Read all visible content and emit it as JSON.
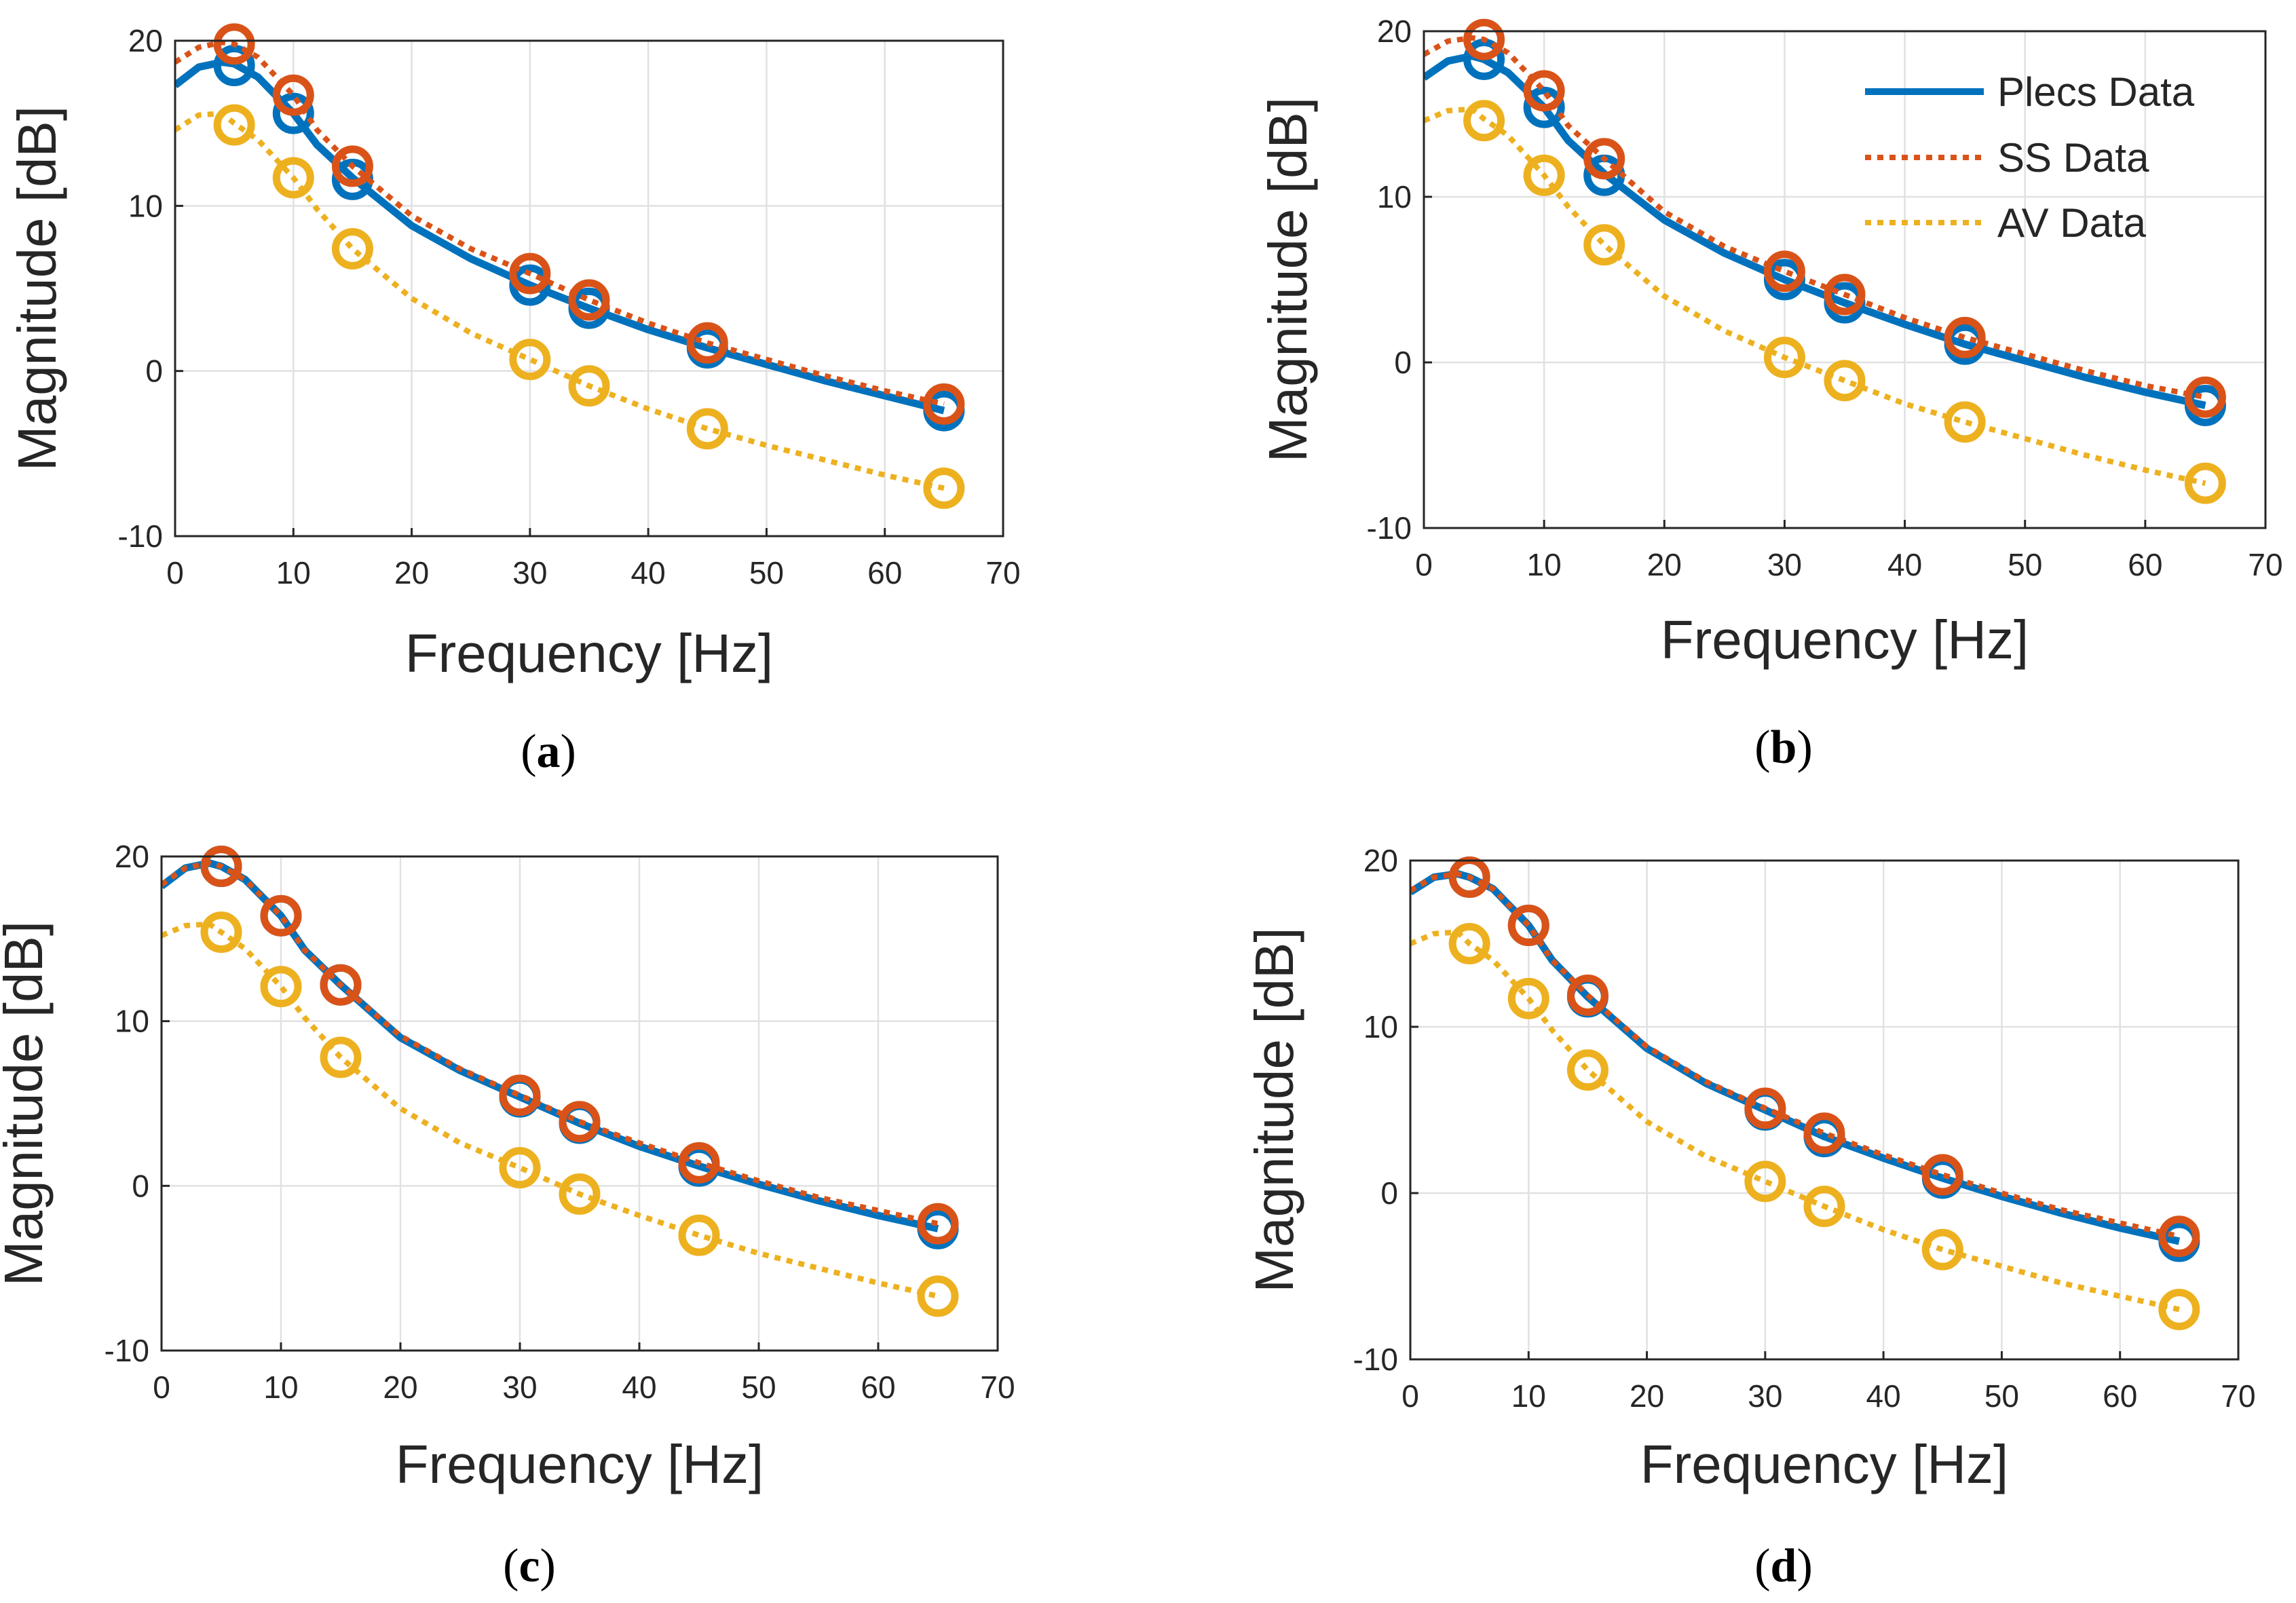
{
  "colors": {
    "plecs": "#0072BD",
    "ss": "#D95319",
    "av": "#EDB120"
  },
  "chart_data": [
    {
      "type": "line",
      "panel": "(a)",
      "panel_letter": "a",
      "xlabel": "Frequency [Hz]",
      "ylabel": "Magnitude [dB]",
      "xlim": [
        0,
        70
      ],
      "ylim": [
        -10,
        20
      ],
      "xticks": [
        "0",
        "10",
        "20",
        "30",
        "40",
        "50",
        "60",
        "70"
      ],
      "yticks": [
        "-10",
        "0",
        "10",
        "20"
      ],
      "grid": true,
      "legend": null,
      "series": [
        {
          "name": "Plecs Data",
          "style": "solid",
          "marker_x": [
            5,
            10,
            15,
            30,
            35,
            45,
            65
          ],
          "marker_y": [
            18.5,
            15.6,
            11.6,
            5.2,
            3.8,
            1.4,
            -2.4
          ],
          "curve_x": [
            0,
            2,
            4,
            5,
            7,
            10,
            12,
            15,
            20,
            25,
            30,
            35,
            40,
            45,
            50,
            55,
            60,
            65
          ],
          "curve_y": [
            17.3,
            18.4,
            18.7,
            18.6,
            17.8,
            15.6,
            13.7,
            11.7,
            8.8,
            6.8,
            5.2,
            3.8,
            2.5,
            1.4,
            0.4,
            -0.6,
            -1.5,
            -2.4
          ]
        },
        {
          "name": "SS Data",
          "style": "dotted",
          "marker_x": [
            5,
            10,
            15,
            30,
            35,
            45,
            65
          ],
          "marker_y": [
            19.8,
            16.7,
            12.4,
            5.9,
            4.3,
            1.7,
            -2.0
          ],
          "curve_x": [
            0,
            2,
            4,
            5,
            7,
            10,
            12,
            15,
            20,
            25,
            30,
            35,
            40,
            45,
            50,
            55,
            60,
            65
          ],
          "curve_y": [
            18.7,
            19.6,
            19.9,
            19.8,
            19.0,
            16.7,
            14.6,
            12.4,
            9.4,
            7.4,
            5.9,
            4.3,
            2.9,
            1.7,
            0.7,
            -0.3,
            -1.2,
            -2.0
          ]
        },
        {
          "name": "AV Data",
          "style": "dotted",
          "marker_x": [
            5,
            10,
            15,
            30,
            35,
            45,
            65
          ],
          "marker_y": [
            14.9,
            11.7,
            7.4,
            0.7,
            -0.9,
            -3.5,
            -7.1
          ],
          "curve_x": [
            0,
            2,
            4,
            5,
            7,
            10,
            12,
            15,
            20,
            25,
            30,
            35,
            40,
            45,
            50,
            55,
            60,
            65
          ],
          "curve_y": [
            14.6,
            15.5,
            15.6,
            15.0,
            14.0,
            11.7,
            9.8,
            7.4,
            4.4,
            2.3,
            0.7,
            -0.9,
            -2.3,
            -3.5,
            -4.5,
            -5.4,
            -6.3,
            -7.1
          ]
        }
      ]
    },
    {
      "type": "line",
      "panel": "(b)",
      "panel_letter": "b",
      "xlabel": "Frequency [Hz]",
      "ylabel": "Magnitude [dB]",
      "xlim": [
        0,
        70
      ],
      "ylim": [
        -10,
        20
      ],
      "xticks": [
        "0",
        "10",
        "20",
        "30",
        "40",
        "50",
        "60",
        "70"
      ],
      "yticks": [
        "-10",
        "0",
        "10",
        "20"
      ],
      "grid": true,
      "legend": "top-right",
      "series": [
        {
          "name": "Plecs Data",
          "style": "solid",
          "marker_x": [
            5,
            10,
            15,
            30,
            35,
            45,
            65
          ],
          "marker_y": [
            18.3,
            15.4,
            11.3,
            5.0,
            3.6,
            1.1,
            -2.6
          ],
          "curve_x": [
            0,
            2,
            4,
            5,
            7,
            10,
            12,
            15,
            20,
            25,
            30,
            35,
            40,
            45,
            50,
            55,
            60,
            65
          ],
          "curve_y": [
            17.2,
            18.2,
            18.5,
            18.3,
            17.5,
            15.4,
            13.4,
            11.4,
            8.6,
            6.6,
            5.0,
            3.6,
            2.3,
            1.1,
            0.1,
            -0.9,
            -1.8,
            -2.6
          ]
        },
        {
          "name": "SS Data",
          "style": "dotted",
          "marker_x": [
            5,
            10,
            15,
            30,
            35,
            45,
            65
          ],
          "marker_y": [
            19.5,
            16.4,
            12.3,
            5.5,
            4.1,
            1.5,
            -2.1
          ],
          "curve_x": [
            0,
            2,
            4,
            5,
            7,
            10,
            12,
            15,
            20,
            25,
            30,
            35,
            40,
            45,
            50,
            55,
            60,
            65
          ],
          "curve_y": [
            18.6,
            19.4,
            19.6,
            19.5,
            18.7,
            16.4,
            14.3,
            12.3,
            9.1,
            7.0,
            5.5,
            4.1,
            2.7,
            1.5,
            0.5,
            -0.5,
            -1.4,
            -2.1
          ]
        },
        {
          "name": "AV Data",
          "style": "dotted",
          "marker_x": [
            5,
            10,
            15,
            30,
            35,
            45,
            65
          ],
          "marker_y": [
            14.6,
            11.3,
            7.1,
            0.3,
            -1.1,
            -3.6,
            -7.3
          ],
          "curve_x": [
            0,
            2,
            4,
            5,
            7,
            10,
            12,
            15,
            20,
            25,
            30,
            35,
            40,
            45,
            50,
            55,
            60,
            65
          ],
          "curve_y": [
            14.6,
            15.2,
            15.3,
            14.7,
            13.7,
            11.3,
            9.4,
            7.1,
            4.0,
            1.9,
            0.3,
            -1.1,
            -2.5,
            -3.6,
            -4.6,
            -5.6,
            -6.5,
            -7.3
          ]
        }
      ]
    },
    {
      "type": "line",
      "panel": "(c)",
      "panel_letter": "c",
      "xlabel": "Frequency [Hz]",
      "ylabel": "Magnitude [dB]",
      "xlim": [
        0,
        70
      ],
      "ylim": [
        -10,
        20
      ],
      "xticks": [
        "0",
        "10",
        "20",
        "30",
        "40",
        "50",
        "60",
        "70"
      ],
      "yticks": [
        "-10",
        "0",
        "10",
        "20"
      ],
      "grid": true,
      "legend": null,
      "series": [
        {
          "name": "Plecs Data",
          "style": "solid",
          "marker_x": [
            5,
            10,
            15,
            30,
            35,
            45,
            65
          ],
          "marker_y": [
            19.4,
            16.4,
            12.2,
            5.4,
            3.8,
            1.2,
            -2.6
          ],
          "curve_x": [
            0,
            2,
            4,
            5,
            7,
            10,
            12,
            15,
            20,
            25,
            30,
            35,
            40,
            45,
            50,
            55,
            60,
            65
          ],
          "curve_y": [
            18.2,
            19.3,
            19.6,
            19.4,
            18.6,
            16.4,
            14.3,
            12.2,
            9.0,
            7.0,
            5.4,
            3.8,
            2.4,
            1.2,
            0.1,
            -0.9,
            -1.8,
            -2.6
          ]
        },
        {
          "name": "SS Data",
          "style": "dotted",
          "marker_x": [
            5,
            10,
            15,
            30,
            35,
            45,
            65
          ],
          "marker_y": [
            19.4,
            16.4,
            12.2,
            5.5,
            3.9,
            1.4,
            -2.3
          ],
          "curve_x": [
            0,
            2,
            4,
            5,
            7,
            10,
            12,
            15,
            20,
            25,
            30,
            35,
            40,
            45,
            50,
            55,
            60,
            65
          ],
          "curve_y": [
            18.3,
            19.3,
            19.6,
            19.4,
            18.6,
            16.4,
            14.3,
            12.2,
            9.1,
            7.1,
            5.5,
            3.9,
            2.6,
            1.4,
            0.3,
            -0.7,
            -1.5,
            -2.3
          ]
        },
        {
          "name": "AV Data",
          "style": "dotted",
          "marker_x": [
            5,
            10,
            15,
            30,
            35,
            45,
            65
          ],
          "marker_y": [
            15.4,
            12.1,
            7.8,
            1.1,
            -0.5,
            -3.0,
            -6.7
          ],
          "curve_x": [
            0,
            2,
            4,
            5,
            7,
            10,
            12,
            15,
            20,
            25,
            30,
            35,
            40,
            45,
            50,
            55,
            60,
            65
          ],
          "curve_y": [
            15.2,
            15.8,
            15.9,
            15.4,
            14.4,
            12.1,
            10.2,
            7.8,
            4.7,
            2.6,
            1.1,
            -0.5,
            -1.8,
            -3.0,
            -4.1,
            -5.0,
            -5.9,
            -6.7
          ]
        }
      ]
    },
    {
      "type": "line",
      "panel": "(d)",
      "panel_letter": "d",
      "xlabel": "Frequency [Hz]",
      "ylabel": "Magnitude [dB]",
      "xlim": [
        0,
        70
      ],
      "ylim": [
        -10,
        20
      ],
      "xticks": [
        "0",
        "10",
        "20",
        "30",
        "40",
        "50",
        "60",
        "70"
      ],
      "yticks": [
        "-10",
        "0",
        "10",
        "20"
      ],
      "grid": true,
      "legend": null,
      "series": [
        {
          "name": "Plecs Data",
          "style": "solid",
          "marker_x": [
            5,
            10,
            15,
            30,
            35,
            45,
            65
          ],
          "marker_y": [
            19.0,
            16.1,
            11.8,
            5.0,
            3.4,
            0.9,
            -2.9
          ],
          "curve_x": [
            0,
            2,
            4,
            5,
            7,
            10,
            12,
            15,
            20,
            25,
            30,
            35,
            40,
            45,
            50,
            55,
            60,
            65
          ],
          "curve_y": [
            18.1,
            19.0,
            19.2,
            19.0,
            18.3,
            16.1,
            14.0,
            11.8,
            8.7,
            6.6,
            5.0,
            3.4,
            2.1,
            0.9,
            -0.2,
            -1.2,
            -2.1,
            -2.9
          ]
        },
        {
          "name": "SS Data",
          "style": "dotted",
          "marker_x": [
            5,
            10,
            15,
            30,
            35,
            45,
            65
          ],
          "marker_y": [
            19.0,
            16.1,
            11.9,
            5.1,
            3.6,
            1.1,
            -2.6
          ],
          "curve_x": [
            0,
            2,
            4,
            5,
            7,
            10,
            12,
            15,
            20,
            25,
            30,
            35,
            40,
            45,
            50,
            55,
            60,
            65
          ],
          "curve_y": [
            18.2,
            19.0,
            19.2,
            19.0,
            18.3,
            16.1,
            14.0,
            11.9,
            8.8,
            6.7,
            5.1,
            3.6,
            2.3,
            1.1,
            0.0,
            -1.0,
            -1.8,
            -2.6
          ]
        },
        {
          "name": "AV Data",
          "style": "dotted",
          "marker_x": [
            5,
            10,
            15,
            30,
            35,
            45,
            65
          ],
          "marker_y": [
            15.0,
            11.7,
            7.4,
            0.7,
            -0.8,
            -3.4,
            -7.0
          ],
          "curve_x": [
            0,
            2,
            4,
            5,
            7,
            10,
            12,
            15,
            20,
            25,
            30,
            35,
            40,
            45,
            50,
            55,
            60,
            65
          ],
          "curve_y": [
            15.0,
            15.6,
            15.7,
            15.0,
            14.0,
            11.7,
            9.8,
            7.4,
            4.3,
            2.2,
            0.7,
            -0.8,
            -2.2,
            -3.4,
            -4.4,
            -5.4,
            -6.2,
            -7.0
          ]
        }
      ]
    }
  ]
}
